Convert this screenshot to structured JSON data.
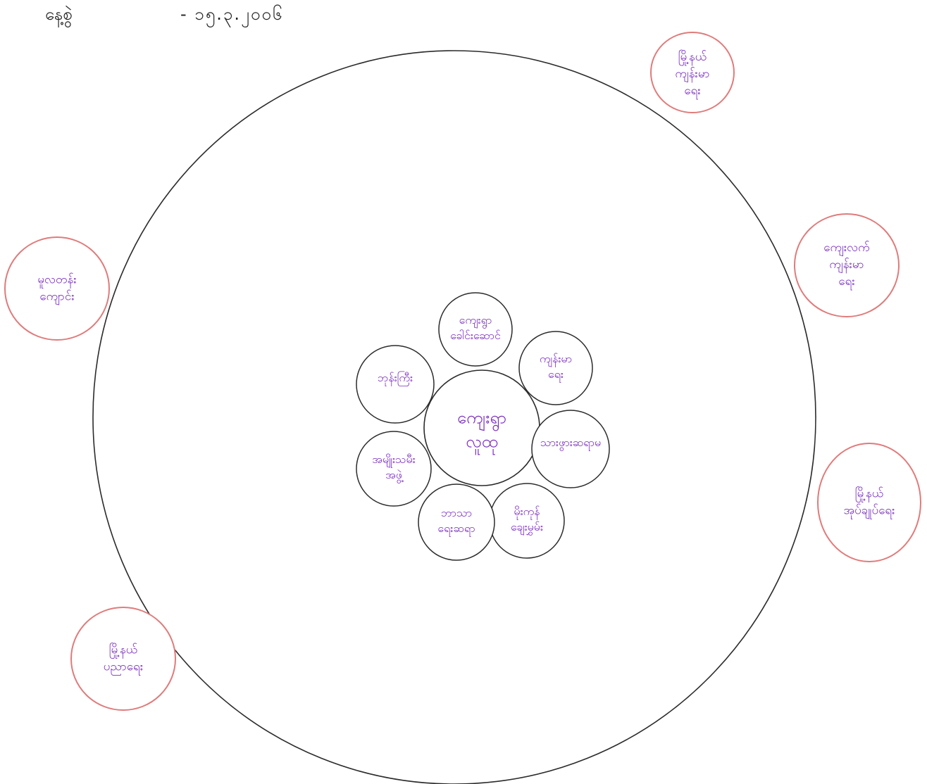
{
  "header": {
    "date_label": "နေ့စွဲ",
    "date_value": "- ၁၅.၃.၂၀၀၆"
  },
  "colors": {
    "outline": "#2b2b2b",
    "outer_ring": "#e07b7b",
    "handwriting": "#7a2fc0"
  },
  "center": {
    "lines": [
      "ကျေးရွာ",
      "လူထု"
    ]
  },
  "inner_nodes": [
    {
      "id": "village-leader",
      "lines": [
        "ကျေးရွာ",
        "ခေါင်းဆောင်"
      ]
    },
    {
      "id": "health-worker",
      "lines": [
        "ကျန်းမာ",
        "ရေး"
      ]
    },
    {
      "id": "midwife",
      "lines": [
        "သားဖွားဆရာမ"
      ]
    },
    {
      "id": "community-volunteer",
      "lines": [
        "မိုးကုန်",
        "ချေးမွှမ်း"
      ]
    },
    {
      "id": "religious-leader",
      "lines": [
        "ဘာသာ",
        "ရေးဆရာ"
      ]
    },
    {
      "id": "elder-group",
      "lines": [
        "အမျိုးသမီး",
        "အဖွဲ့"
      ]
    },
    {
      "id": "monk",
      "lines": [
        "ဘုန်းကြီး"
      ]
    }
  ],
  "outer_nodes": [
    {
      "id": "township-health",
      "lines": [
        "မြို့နယ်",
        "ကျန်းမာ",
        "ရေး"
      ]
    },
    {
      "id": "health-department",
      "lines": [
        "ကျေးလက်",
        "ကျန်းမာ",
        "ရေး"
      ]
    },
    {
      "id": "township-office",
      "lines": [
        "မြို့နယ်",
        "အုပ်ချုပ်ရေး"
      ]
    },
    {
      "id": "school",
      "lines": [
        "မူလတန်း",
        "ကျောင်း"
      ]
    },
    {
      "id": "township-education",
      "lines": [
        "မြို့နယ်",
        "ပညာရေး"
      ]
    }
  ]
}
